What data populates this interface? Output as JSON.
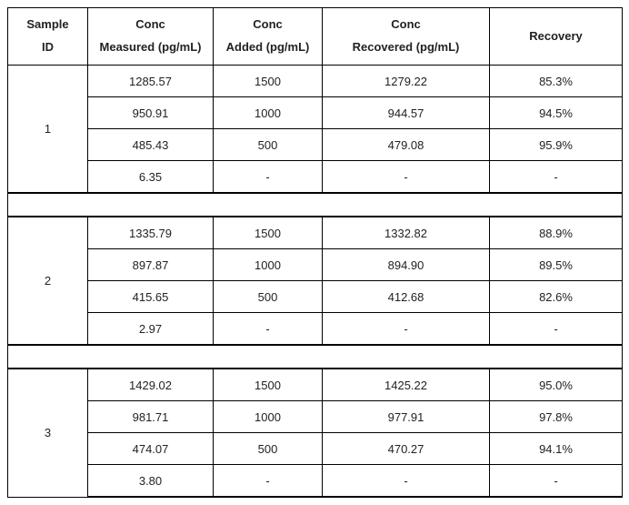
{
  "columns": {
    "id": {
      "line1": "Sample",
      "line2": "ID"
    },
    "measured": {
      "line1": "Conc",
      "line2": "Measured (pg/mL)"
    },
    "added": {
      "line1": "Conc",
      "line2": "Added (pg/mL)"
    },
    "recovered": {
      "line1": "Conc",
      "line2": "Recovered (pg/mL)"
    },
    "recovery": {
      "line1": "Recovery"
    }
  },
  "groups": [
    {
      "id": "1",
      "rows": [
        {
          "measured": "1285.57",
          "added": "1500",
          "recovered": "1279.22",
          "recovery": "85.3%"
        },
        {
          "measured": "950.91",
          "added": "1000",
          "recovered": "944.57",
          "recovery": "94.5%"
        },
        {
          "measured": "485.43",
          "added": "500",
          "recovered": "479.08",
          "recovery": "95.9%"
        },
        {
          "measured": "6.35",
          "added": "-",
          "recovered": "-",
          "recovery": "-"
        }
      ]
    },
    {
      "id": "2",
      "rows": [
        {
          "measured": "1335.79",
          "added": "1500",
          "recovered": "1332.82",
          "recovery": "88.9%"
        },
        {
          "measured": "897.87",
          "added": "1000",
          "recovered": "894.90",
          "recovery": "89.5%"
        },
        {
          "measured": "415.65",
          "added": "500",
          "recovered": "412.68",
          "recovery": "82.6%"
        },
        {
          "measured": "2.97",
          "added": "-",
          "recovered": "-",
          "recovery": "-"
        }
      ]
    },
    {
      "id": "3",
      "rows": [
        {
          "measured": "1429.02",
          "added": "1500",
          "recovered": "1425.22",
          "recovery": "95.0%"
        },
        {
          "measured": "981.71",
          "added": "1000",
          "recovered": "977.91",
          "recovery": "97.8%"
        },
        {
          "measured": "474.07",
          "added": "500",
          "recovered": "470.27",
          "recovery": "94.1%"
        },
        {
          "measured": "3.80",
          "added": "-",
          "recovered": "-",
          "recovery": "-"
        }
      ]
    }
  ]
}
